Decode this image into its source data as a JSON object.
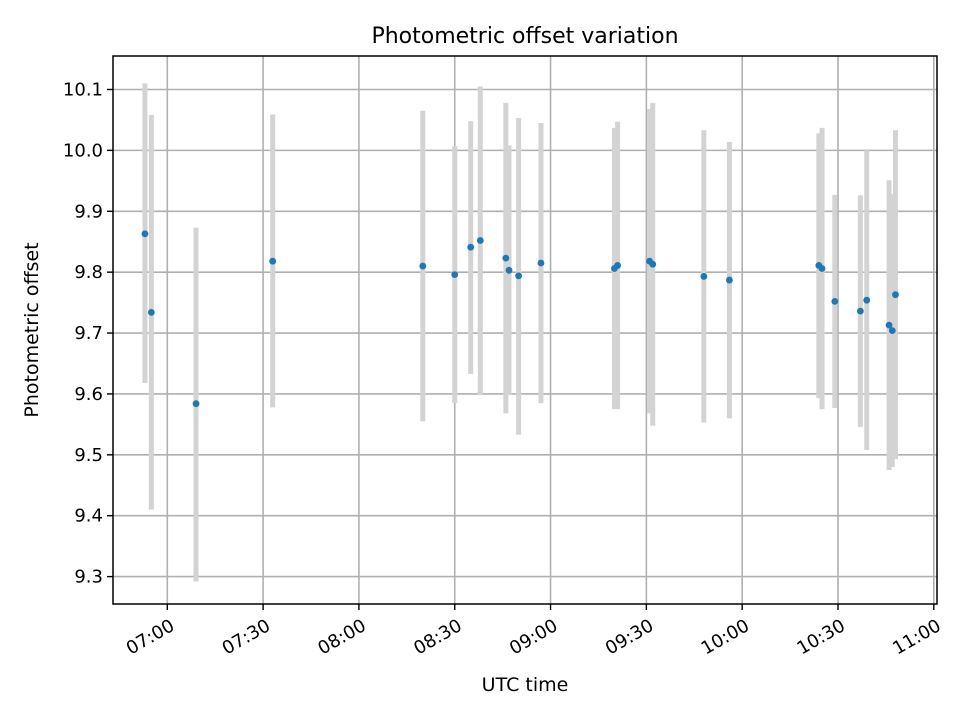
{
  "chart_data": {
    "type": "scatter",
    "title": "Photometric offset variation",
    "xlabel": "UTC time",
    "ylabel": "Photometric offset",
    "xlim": [
      "06:43",
      "11:01"
    ],
    "ylim": [
      9.255,
      10.155
    ],
    "x_ticks": [
      "07:00",
      "07:30",
      "08:00",
      "08:30",
      "09:00",
      "09:30",
      "10:00",
      "10:30",
      "11:00"
    ],
    "y_ticks": [
      "9.3",
      "9.4",
      "9.5",
      "9.6",
      "9.7",
      "9.8",
      "9.9",
      "10.0",
      "10.1"
    ],
    "grid": true,
    "point_color": "#1f77b4",
    "errorbar_color": "#d3d3d3",
    "points": [
      {
        "x": "06:53",
        "y": 9.863,
        "ylow": 9.618,
        "yhigh": 10.11
      },
      {
        "x": "06:55",
        "y": 9.734,
        "ylow": 9.41,
        "yhigh": 10.058
      },
      {
        "x": "07:09",
        "y": 9.584,
        "ylow": 9.292,
        "yhigh": 9.873
      },
      {
        "x": "07:33",
        "y": 9.818,
        "ylow": 9.578,
        "yhigh": 10.059
      },
      {
        "x": "08:20",
        "y": 9.81,
        "ylow": 9.555,
        "yhigh": 10.065
      },
      {
        "x": "08:30",
        "y": 9.796,
        "ylow": 9.585,
        "yhigh": 10.007
      },
      {
        "x": "08:35",
        "y": 9.841,
        "ylow": 9.633,
        "yhigh": 10.048
      },
      {
        "x": "08:38",
        "y": 9.852,
        "ylow": 9.598,
        "yhigh": 10.105
      },
      {
        "x": "08:46",
        "y": 9.823,
        "ylow": 9.568,
        "yhigh": 10.078
      },
      {
        "x": "08:47",
        "y": 9.803,
        "ylow": 9.598,
        "yhigh": 10.008
      },
      {
        "x": "08:50",
        "y": 9.794,
        "ylow": 9.533,
        "yhigh": 10.053
      },
      {
        "x": "08:57",
        "y": 9.815,
        "ylow": 9.585,
        "yhigh": 10.045
      },
      {
        "x": "09:20",
        "y": 9.806,
        "ylow": 9.575,
        "yhigh": 10.037
      },
      {
        "x": "09:21",
        "y": 9.811,
        "ylow": 9.575,
        "yhigh": 10.047
      },
      {
        "x": "09:31",
        "y": 9.818,
        "ylow": 9.568,
        "yhigh": 10.068
      },
      {
        "x": "09:32",
        "y": 9.813,
        "ylow": 9.548,
        "yhigh": 10.078
      },
      {
        "x": "09:48",
        "y": 9.793,
        "ylow": 9.553,
        "yhigh": 10.033
      },
      {
        "x": "09:56",
        "y": 9.787,
        "ylow": 9.56,
        "yhigh": 10.014
      },
      {
        "x": "10:24",
        "y": 9.811,
        "ylow": 9.593,
        "yhigh": 10.028
      },
      {
        "x": "10:25",
        "y": 9.806,
        "ylow": 9.575,
        "yhigh": 10.037
      },
      {
        "x": "10:29",
        "y": 9.752,
        "ylow": 9.577,
        "yhigh": 9.927
      },
      {
        "x": "10:37",
        "y": 9.736,
        "ylow": 9.546,
        "yhigh": 9.926
      },
      {
        "x": "10:39",
        "y": 9.754,
        "ylow": 9.508,
        "yhigh": 10.0
      },
      {
        "x": "10:46",
        "y": 9.713,
        "ylow": 9.475,
        "yhigh": 9.951
      },
      {
        "x": "10:47",
        "y": 9.704,
        "ylow": 9.48,
        "yhigh": 9.928
      },
      {
        "x": "10:48",
        "y": 9.763,
        "ylow": 9.493,
        "yhigh": 10.033
      }
    ]
  }
}
